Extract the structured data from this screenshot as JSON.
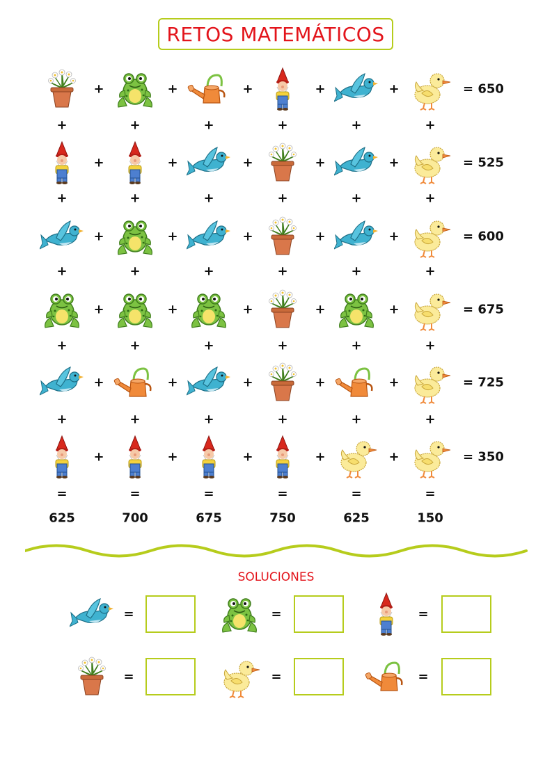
{
  "title": "RETOS MATEMÁTICOS",
  "operators": {
    "plus": "+",
    "equals": "="
  },
  "icon_names": {
    "P": "flower-pot-icon",
    "F": "frog-icon",
    "W": "watering-can-icon",
    "G": "gnome-icon",
    "B": "bluebird-icon",
    "D": "duckling-icon"
  },
  "grid": {
    "rows": [
      {
        "icons": [
          "P",
          "F",
          "W",
          "G",
          "B",
          "D"
        ],
        "sum": "650"
      },
      {
        "icons": [
          "G",
          "G",
          "B",
          "P",
          "B",
          "D"
        ],
        "sum": "525"
      },
      {
        "icons": [
          "B",
          "F",
          "B",
          "P",
          "B",
          "D"
        ],
        "sum": "600"
      },
      {
        "icons": [
          "F",
          "F",
          "F",
          "P",
          "F",
          "D"
        ],
        "sum": "675"
      },
      {
        "icons": [
          "B",
          "W",
          "B",
          "P",
          "W",
          "D"
        ],
        "sum": "725"
      },
      {
        "icons": [
          "G",
          "G",
          "G",
          "G",
          "D",
          "D"
        ],
        "sum": "350"
      }
    ],
    "column_sums": [
      "625",
      "700",
      "675",
      "750",
      "625",
      "150"
    ]
  },
  "solutions": {
    "title": "SOLUCIONES",
    "items": [
      {
        "icon": "B",
        "value": ""
      },
      {
        "icon": "F",
        "value": ""
      },
      {
        "icon": "G",
        "value": ""
      },
      {
        "icon": "P",
        "value": ""
      },
      {
        "icon": "D",
        "value": ""
      },
      {
        "icon": "W",
        "value": ""
      }
    ]
  },
  "colors": {
    "title_red": "#e3141b",
    "accent_green": "#b6cc1c"
  }
}
